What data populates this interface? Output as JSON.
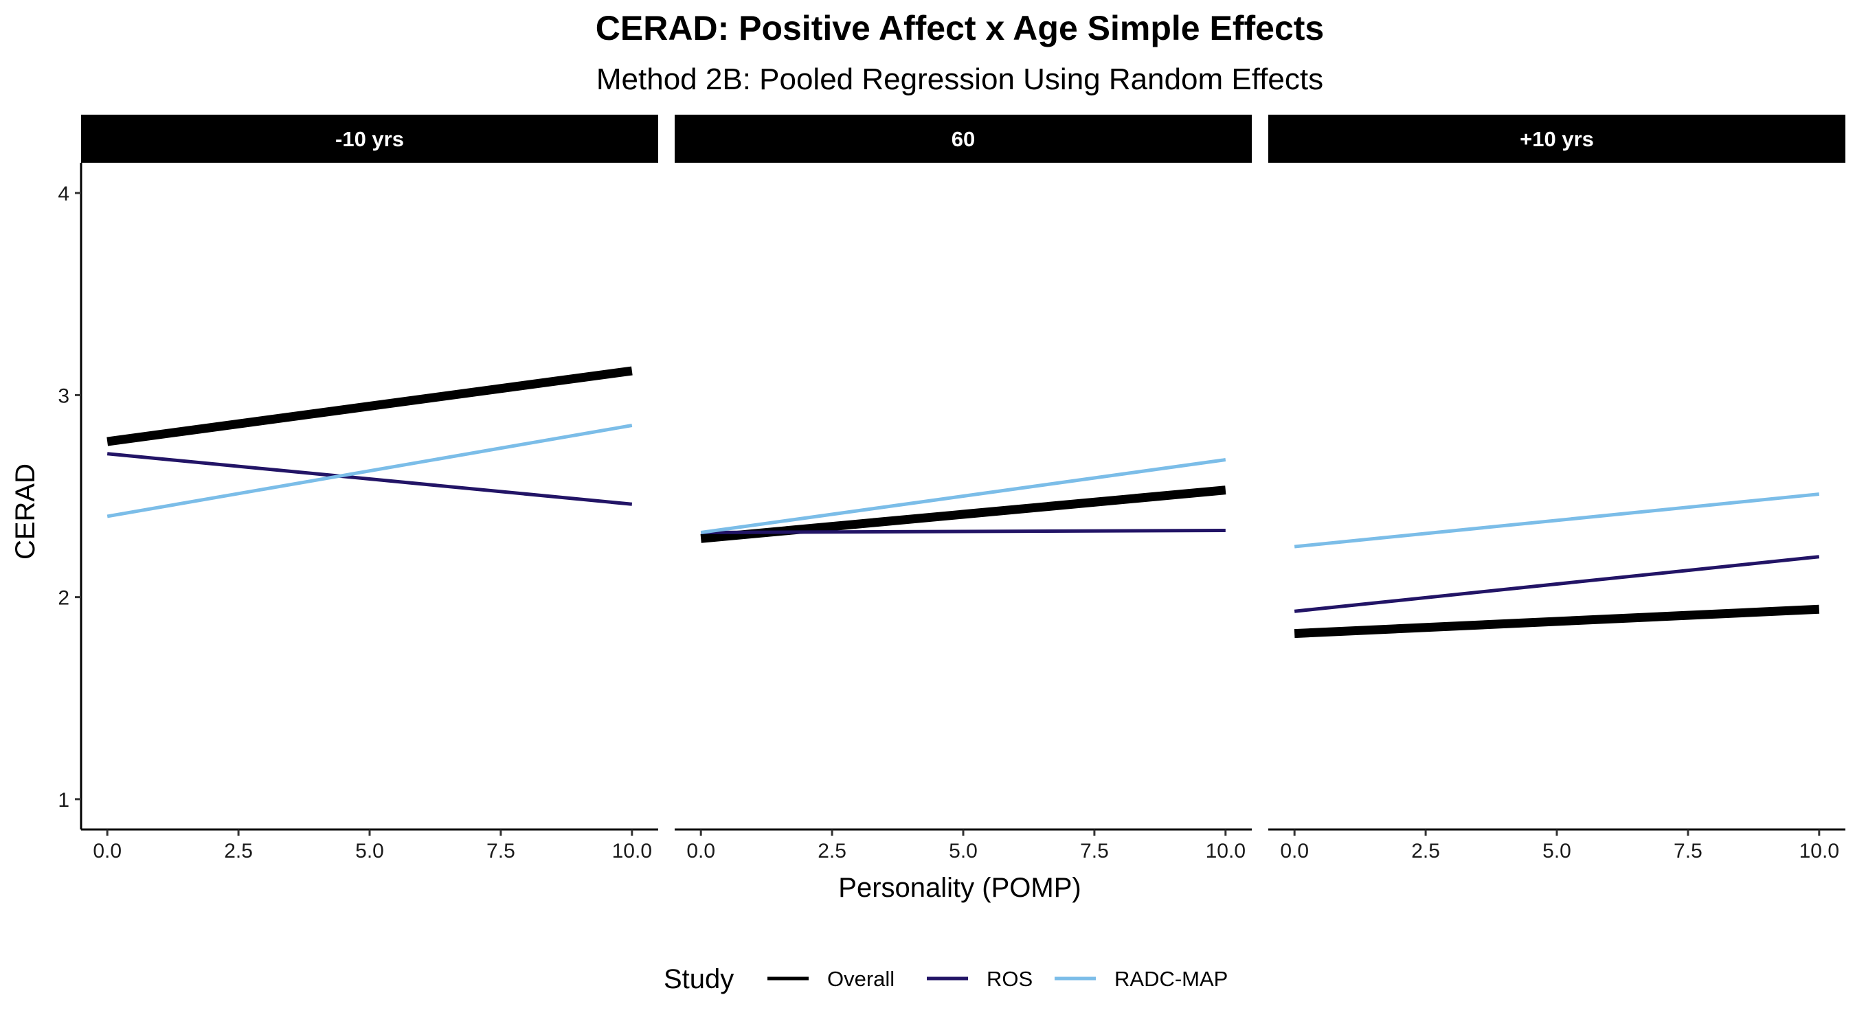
{
  "chart_data": {
    "type": "line",
    "title": "CERAD: Positive Affect x Age Simple Effects",
    "subtitle": "Method 2B: Pooled Regression Using Random Effects",
    "xlabel": "Personality (POMP)",
    "ylabel": "CERAD",
    "xlim": [
      -0.5,
      10.5
    ],
    "ylim": [
      0.85,
      4.15
    ],
    "x_ticks": [
      0,
      2.5,
      5,
      7.5,
      10
    ],
    "x_tick_labels": [
      "0.0",
      "2.5",
      "5.0",
      "7.5",
      "10.0"
    ],
    "y_ticks": [
      1,
      2,
      3,
      4
    ],
    "y_tick_labels": [
      "1",
      "2",
      "3",
      "4"
    ],
    "grid": false,
    "legend": {
      "title": "Study",
      "position": "bottom",
      "entries": [
        "Overall",
        "ROS",
        "RADC-MAP"
      ]
    },
    "series_styles": [
      {
        "name": "Overall",
        "color": "#000000",
        "weight": "thick"
      },
      {
        "name": "ROS",
        "color": "#221466",
        "weight": "thin"
      },
      {
        "name": "RADC-MAP",
        "color": "#7bbde8",
        "weight": "thin"
      }
    ],
    "panels": [
      {
        "label": "-10 yrs",
        "series": [
          {
            "name": "Overall",
            "x": [
              0,
              10
            ],
            "y": [
              2.77,
              3.12
            ]
          },
          {
            "name": "ROS",
            "x": [
              0,
              10
            ],
            "y": [
              2.71,
              2.46
            ]
          },
          {
            "name": "RADC-MAP",
            "x": [
              0,
              10
            ],
            "y": [
              2.4,
              2.85
            ]
          }
        ]
      },
      {
        "label": "60",
        "series": [
          {
            "name": "Overall",
            "x": [
              0,
              10
            ],
            "y": [
              2.29,
              2.53
            ]
          },
          {
            "name": "ROS",
            "x": [
              0,
              10
            ],
            "y": [
              2.32,
              2.33
            ]
          },
          {
            "name": "RADC-MAP",
            "x": [
              0,
              10
            ],
            "y": [
              2.32,
              2.68
            ]
          }
        ]
      },
      {
        "label": "+10 yrs",
        "series": [
          {
            "name": "Overall",
            "x": [
              0,
              10
            ],
            "y": [
              1.82,
              1.94
            ]
          },
          {
            "name": "ROS",
            "x": [
              0,
              10
            ],
            "y": [
              1.93,
              2.2
            ]
          },
          {
            "name": "RADC-MAP",
            "x": [
              0,
              10
            ],
            "y": [
              2.25,
              2.51
            ]
          }
        ]
      }
    ]
  }
}
